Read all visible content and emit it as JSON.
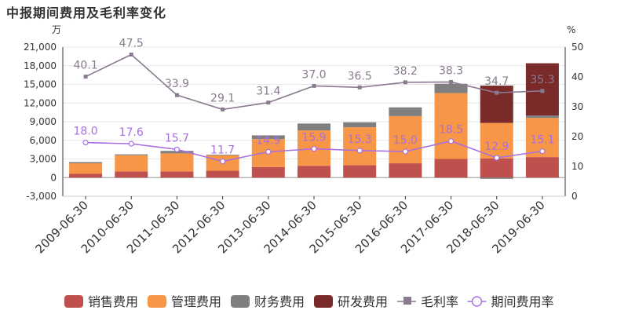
{
  "chart_data": {
    "type": "bar",
    "title": "中报期间费用及毛利率变化",
    "left_unit": "万",
    "right_unit": "%",
    "categories": [
      "2009-06-30",
      "2010-06-30",
      "2011-06-30",
      "2012-06-30",
      "2013-06-30",
      "2014-06-30",
      "2015-06-30",
      "2016-06-30",
      "2017-06-30",
      "2018-06-30",
      "2019-06-30"
    ],
    "y_left": {
      "min": -3000,
      "max": 21000,
      "ticks": [
        -3000,
        0,
        3000,
        6000,
        9000,
        12000,
        15000,
        18000,
        21000
      ],
      "tick_labels": [
        "-3,000",
        "0",
        "3,000",
        "6,000",
        "9,000",
        "12,000",
        "15,000",
        "18,000",
        "21,000"
      ]
    },
    "y_right": {
      "min": 0,
      "max": 50,
      "ticks": [
        0,
        10,
        20,
        30,
        40,
        50
      ],
      "tick_labels": [
        "0",
        "10",
        "20",
        "30",
        "40",
        "50"
      ]
    },
    "bar_series": [
      {
        "name": "销售费用",
        "color": "#c0504d",
        "values": [
          600,
          1000,
          1000,
          1100,
          1700,
          1900,
          2000,
          2300,
          3000,
          3100,
          3300
        ]
      },
      {
        "name": "管理费用",
        "color": "#f79646",
        "values": [
          1700,
          2600,
          2900,
          2500,
          4500,
          5700,
          6100,
          7600,
          10600,
          5700,
          6300
        ]
      },
      {
        "name": "财务费用",
        "color": "#7f7f7f",
        "values": [
          200,
          150,
          400,
          100,
          600,
          1100,
          800,
          1400,
          1500,
          -200,
          400
        ]
      },
      {
        "name": "研发费用",
        "color": "#7b2a2a",
        "values": [
          0,
          0,
          0,
          0,
          0,
          0,
          0,
          0,
          0,
          6000,
          8400
        ]
      }
    ],
    "line_series": [
      {
        "name": "毛利率",
        "color": "#8a7a8f",
        "marker": "square",
        "values": [
          40.1,
          47.5,
          33.9,
          29.1,
          31.4,
          37.0,
          36.5,
          38.2,
          38.3,
          34.7,
          35.3
        ],
        "labels": [
          "40.1",
          "47.5",
          "33.9",
          "29.1",
          "31.4",
          "37.0",
          "36.5",
          "38.2",
          "38.3",
          "34.7",
          "35.3"
        ]
      },
      {
        "name": "期间费用率",
        "color": "#a970e0",
        "marker": "circle",
        "values": [
          18.0,
          17.6,
          15.7,
          11.7,
          14.9,
          15.9,
          15.3,
          15.0,
          18.5,
          12.9,
          15.1
        ],
        "labels": [
          "18.0",
          "17.6",
          "15.7",
          "11.7",
          "14.9",
          "15.9",
          "15.3",
          "15.0",
          "18.5",
          "12.9",
          "15.1"
        ]
      }
    ],
    "legend_position": "bottom",
    "grid": true
  }
}
